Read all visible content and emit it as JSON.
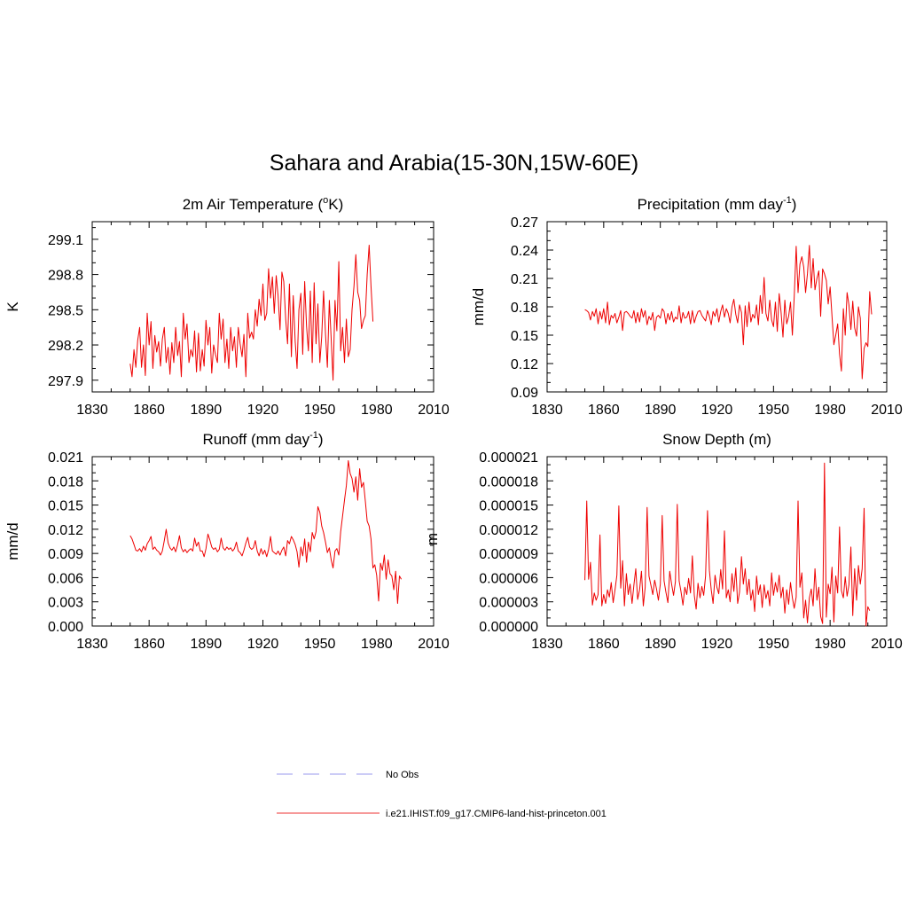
{
  "title": "Sahara and Arabia(15-30N,15W-60E)",
  "legend": [
    {
      "label": "No Obs",
      "color": "#9999ee",
      "style": "dashed"
    },
    {
      "label": "i.e21.IHIST.f09_g17.CMIP6-land-hist-princeton.001",
      "color": "#ee3333",
      "style": "solid"
    }
  ],
  "chart_data": [
    {
      "type": "line",
      "title": "2m Air Temperature (oK)",
      "title_parts": {
        "main": "2m Air Temperature (",
        "sup": "o",
        "tail": "K)"
      },
      "ylabel": "K",
      "xlim": [
        1830,
        2010
      ],
      "xticks": [
        1830,
        1860,
        1890,
        1920,
        1950,
        1980,
        2010
      ],
      "ylim": [
        297.8,
        299.25
      ],
      "yticks": [
        "297.9",
        "298.2",
        "298.5",
        "298.8",
        "299.1"
      ],
      "x_start": 1850,
      "color": "#ee0000",
      "values": [
        298.04,
        297.93,
        298.16,
        298.01,
        298.24,
        298.35,
        298.01,
        298.2,
        297.94,
        298.47,
        298.2,
        298.4,
        298.0,
        298.28,
        298.14,
        298.23,
        298.02,
        298.25,
        298.35,
        298.05,
        298.18,
        297.95,
        298.22,
        298.05,
        298.35,
        298.11,
        298.23,
        297.93,
        298.47,
        298.25,
        298.38,
        298.05,
        298.16,
        298.1,
        298.32,
        297.97,
        298.3,
        297.98,
        298.16,
        298.02,
        298.41,
        298.2,
        298.35,
        297.96,
        298.2,
        298.12,
        298.05,
        298.47,
        298.25,
        298.42,
        298.05,
        298.25,
        298.0,
        298.35,
        298.15,
        298.27,
        298.01,
        298.35,
        298.21,
        298.1,
        298.29,
        297.93,
        298.47,
        298.26,
        298.31,
        298.25,
        298.5,
        298.36,
        298.59,
        298.45,
        298.72,
        298.41,
        298.47,
        298.85,
        298.6,
        298.78,
        298.47,
        298.79,
        298.62,
        298.33,
        298.82,
        298.74,
        298.42,
        298.21,
        298.72,
        298.1,
        298.62,
        298.23,
        298.0,
        298.5,
        298.64,
        298.12,
        298.74,
        298.36,
        298.15,
        298.66,
        298.05,
        298.73,
        298.21,
        298.55,
        298.05,
        298.27,
        298.66,
        298.29,
        298.01,
        298.58,
        298.25,
        297.9,
        298.58,
        298.32,
        298.91,
        298.15,
        298.35,
        298.05,
        298.42,
        298.1,
        298.16,
        298.5,
        298.7,
        298.97,
        298.65,
        298.58,
        298.34,
        298.41,
        298.45,
        298.8,
        299.05,
        298.7,
        298.4
      ]
    },
    {
      "type": "line",
      "title": "Precipitation (mm day-1)",
      "title_parts": {
        "main": "Precipitation (mm day",
        "sup": "-1",
        "tail": ")"
      },
      "ylabel": "mm/d",
      "xlim": [
        1830,
        2010
      ],
      "xticks": [
        1830,
        1860,
        1890,
        1920,
        1950,
        1980,
        2010
      ],
      "ylim": [
        0.09,
        0.27
      ],
      "yticks": [
        "0.09",
        "0.12",
        "0.15",
        "0.18",
        "0.21",
        "0.24",
        "0.27"
      ],
      "x_start": 1850,
      "color": "#ee0000",
      "values": [
        0.177,
        0.176,
        0.174,
        0.166,
        0.175,
        0.17,
        0.178,
        0.162,
        0.175,
        0.167,
        0.178,
        0.163,
        0.185,
        0.161,
        0.171,
        0.168,
        0.173,
        0.163,
        0.169,
        0.176,
        0.155,
        0.174,
        0.175,
        0.173,
        0.17,
        0.168,
        0.176,
        0.163,
        0.174,
        0.164,
        0.178,
        0.169,
        0.176,
        0.161,
        0.17,
        0.166,
        0.174,
        0.155,
        0.169,
        0.171,
        0.168,
        0.178,
        0.175,
        0.162,
        0.173,
        0.166,
        0.175,
        0.164,
        0.169,
        0.167,
        0.181,
        0.163,
        0.174,
        0.168,
        0.169,
        0.175,
        0.162,
        0.176,
        0.163,
        0.17,
        0.175,
        0.176,
        0.171,
        0.168,
        0.165,
        0.176,
        0.17,
        0.161,
        0.175,
        0.17,
        0.178,
        0.164,
        0.175,
        0.182,
        0.169,
        0.178,
        0.173,
        0.163,
        0.18,
        0.188,
        0.172,
        0.163,
        0.182,
        0.174,
        0.14,
        0.181,
        0.159,
        0.185,
        0.164,
        0.172,
        0.168,
        0.182,
        0.161,
        0.192,
        0.173,
        0.211,
        0.173,
        0.165,
        0.187,
        0.166,
        0.159,
        0.185,
        0.154,
        0.194,
        0.175,
        0.148,
        0.187,
        0.162,
        0.17,
        0.185,
        0.15,
        0.191,
        0.244,
        0.195,
        0.225,
        0.233,
        0.222,
        0.195,
        0.215,
        0.245,
        0.2,
        0.231,
        0.198,
        0.21,
        0.218,
        0.17,
        0.22,
        0.215,
        0.208,
        0.183,
        0.201,
        0.17,
        0.14,
        0.15,
        0.162,
        0.13,
        0.112,
        0.178,
        0.15,
        0.195,
        0.182,
        0.156,
        0.186,
        0.158,
        0.149,
        0.18,
        0.168,
        0.104,
        0.136,
        0.142,
        0.138,
        0.196,
        0.172
      ]
    },
    {
      "type": "line",
      "title": "Runoff (mm day-1)",
      "title_parts": {
        "main": "Runoff (mm day",
        "sup": "-1",
        "tail": ")"
      },
      "ylabel": "mm/d",
      "xlim": [
        1830,
        2010
      ],
      "xticks": [
        1830,
        1860,
        1890,
        1920,
        1950,
        1980,
        2010
      ],
      "ylim": [
        0.0,
        0.021
      ],
      "yticks": [
        "0.000",
        "0.003",
        "0.006",
        "0.009",
        "0.012",
        "0.015",
        "0.018",
        "0.021"
      ],
      "x_start": 1850,
      "color": "#ee0000",
      "values": [
        0.0112,
        0.0108,
        0.0101,
        0.0094,
        0.0093,
        0.0096,
        0.0092,
        0.0099,
        0.0094,
        0.0102,
        0.0106,
        0.0111,
        0.0095,
        0.0098,
        0.0094,
        0.0092,
        0.0088,
        0.0093,
        0.0106,
        0.012,
        0.0103,
        0.0097,
        0.0094,
        0.0098,
        0.0092,
        0.0101,
        0.0112,
        0.0097,
        0.0092,
        0.0095,
        0.0091,
        0.0094,
        0.0096,
        0.0093,
        0.0109,
        0.0099,
        0.0104,
        0.0093,
        0.0093,
        0.0086,
        0.0096,
        0.0114,
        0.0107,
        0.0098,
        0.0095,
        0.0097,
        0.0092,
        0.0095,
        0.0109,
        0.0097,
        0.0094,
        0.0098,
        0.0095,
        0.0097,
        0.0093,
        0.0096,
        0.0104,
        0.0093,
        0.0091,
        0.0087,
        0.0094,
        0.0103,
        0.011,
        0.0098,
        0.0095,
        0.0097,
        0.0106,
        0.0093,
        0.0087,
        0.0096,
        0.0089,
        0.0094,
        0.0086,
        0.0095,
        0.0111,
        0.0093,
        0.0091,
        0.0089,
        0.0093,
        0.0088,
        0.0094,
        0.0098,
        0.0087,
        0.0106,
        0.0102,
        0.0111,
        0.0107,
        0.0101,
        0.0092,
        0.0073,
        0.0098,
        0.0087,
        0.0108,
        0.0079,
        0.0104,
        0.0092,
        0.0116,
        0.0108,
        0.0117,
        0.0148,
        0.0141,
        0.0124,
        0.0116,
        0.0104,
        0.0091,
        0.0097,
        0.0082,
        0.0072,
        0.0093,
        0.0096,
        0.0088,
        0.0117,
        0.0136,
        0.0156,
        0.0174,
        0.0205,
        0.0189,
        0.0183,
        0.0166,
        0.0185,
        0.0156,
        0.0195,
        0.0172,
        0.0178,
        0.0155,
        0.013,
        0.0124,
        0.0108,
        0.0072,
        0.0076,
        0.0063,
        0.0031,
        0.0078,
        0.0069,
        0.0088,
        0.0058,
        0.0082,
        0.0065,
        0.0062,
        0.0045,
        0.0068,
        0.0028,
        0.0062,
        0.0058
      ]
    },
    {
      "type": "line",
      "title": "Snow Depth (m)",
      "title_parts": {
        "main": "Snow Depth (m)",
        "sup": "",
        "tail": ""
      },
      "ylabel": "m",
      "xlim": [
        1830,
        2010
      ],
      "xticks": [
        1830,
        1860,
        1890,
        1920,
        1950,
        1980,
        2010
      ],
      "ylim": [
        0.0,
        2.1e-05
      ],
      "yticks": [
        "0.000000",
        "0.000003",
        "0.000006",
        "0.000009",
        "0.000012",
        "0.000015",
        "0.000018",
        "0.000021"
      ],
      "x_start": 1850,
      "color": "#ee0000",
      "values": [
        5.7e-06,
        1.55e-05,
        5.8e-06,
        7.9e-06,
        2.6e-06,
        4.1e-06,
        3.2e-06,
        3.9e-06,
        1.13e-05,
        2.5e-06,
        3.9e-06,
        2.8e-06,
        4.5e-06,
        3.6e-06,
        5.4e-06,
        2.9e-06,
        4.5e-06,
        6.3e-06,
        1.49e-05,
        4.7e-06,
        8.1e-06,
        2.5e-06,
        6.5e-06,
        3.9e-06,
        5.2e-06,
        2.8e-06,
        5.1e-06,
        7.1e-06,
        3.3e-06,
        4.5e-06,
        6.8e-06,
        2.5e-06,
        4.8e-06,
        1.47e-05,
        6.2e-06,
        5.1e-06,
        3.9e-06,
        5.7e-06,
        4.6e-06,
        3.2e-06,
        5.2e-06,
        1.37e-05,
        5.6e-06,
        4.2e-06,
        2.9e-06,
        6.8e-06,
        5.2e-06,
        3.8e-06,
        5.5e-06,
        1.51e-05,
        5.6e-06,
        4.2e-06,
        2.6e-06,
        4.8e-06,
        3.9e-06,
        5.9e-06,
        4.1e-06,
        8.7e-06,
        3.8e-06,
        2.1e-06,
        5.3e-06,
        3.5e-06,
        4.9e-06,
        3.8e-06,
        6.2e-06,
        1.43e-05,
        6.9e-06,
        4.5e-06,
        2.8e-06,
        6.3e-06,
        4.8e-06,
        4e-06,
        7e-06,
        4.6e-06,
        1.18e-05,
        3.5e-06,
        4.5e-06,
        3e-06,
        6.5e-06,
        4.3e-06,
        7.2e-06,
        2.8e-06,
        4.2e-06,
        8.6e-06,
        5.2e-06,
        7.1e-06,
        3.9e-06,
        5.8e-06,
        3.2e-06,
        4.5e-06,
        1.8e-06,
        6.2e-06,
        3.9e-06,
        5.1e-06,
        2.3e-06,
        5.1e-06,
        3.4e-06,
        4.4e-06,
        2.5e-06,
        6.6e-06,
        3.8e-06,
        5.4e-06,
        4.2e-06,
        6.3e-06,
        3.5e-06,
        4.8e-06,
        1.6e-06,
        4.5e-06,
        2.7e-06,
        5.4e-06,
        3.5e-06,
        2.2e-06,
        3.6e-06,
        1.55e-05,
        4.8e-06,
        6.6e-06,
        1e-06,
        3.2e-06,
        4e-07,
        3.5e-06,
        4.6e-06,
        2.5e-06,
        7.1e-06,
        3.2e-06,
        4.8e-06,
        1.2e-06,
        3e-07,
        2.02e-05,
        1.1e-06,
        5.2e-06,
        4e-06,
        7.3e-06,
        5e-07,
        6.2e-06,
        4.1e-06,
        1.23e-05,
        4.4e-06,
        3.5e-06,
        6.1e-06,
        3.7e-06,
        5.1e-06,
        9.8e-06,
        1.3e-06,
        7.1e-06,
        3.2e-06,
        7.5e-06,
        5.2e-06,
        7.1e-06,
        1.46e-05,
        0.0,
        2.4e-06,
        1.9e-06
      ]
    }
  ]
}
